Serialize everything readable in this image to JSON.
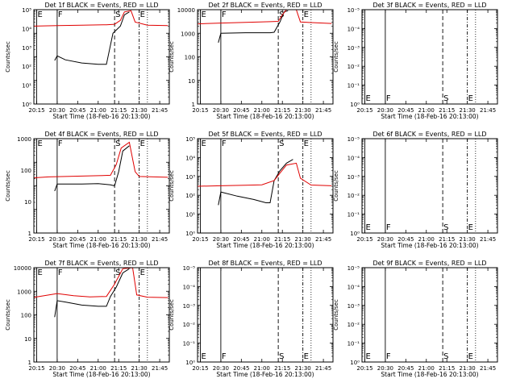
{
  "figure": {
    "xlabel": "Start Time (18-Feb-16 20:13:00)",
    "ylabel": "Counts/sec",
    "colors": {
      "events": "#000000",
      "lld": "#e00000",
      "axes": "#000000"
    }
  },
  "chart_data": [
    {
      "type": "line",
      "title": "Det 1f BLACK = Events, RED = LLD",
      "ylim": [
        1,
        10000
      ],
      "ylog": true,
      "xlim": [
        20.216,
        21.867
      ],
      "xticks": [
        "20:15",
        "20:30",
        "20:45",
        "21:00",
        "21:15",
        "21:30",
        "21:45"
      ],
      "yticks": [
        "10⁰",
        "10¹",
        "10²",
        "10³",
        "10⁴",
        "10⁵"
      ],
      "markers": [
        {
          "label": "E",
          "t": 20.25
        },
        {
          "label": "F",
          "t": 20.5
        },
        {
          "label": "S",
          "t": 21.2
        },
        {
          "label": "E",
          "t": 21.5
        }
      ],
      "series": [
        {
          "name": "Events",
          "color": "#000000",
          "points": [
            [
              20.47,
              70
            ],
            [
              20.5,
              110
            ],
            [
              20.6,
              75
            ],
            [
              20.8,
              55
            ],
            [
              21.0,
              48
            ],
            [
              21.1,
              48
            ],
            [
              21.18,
              1000
            ],
            [
              21.27,
              2000
            ],
            [
              21.32,
              6000
            ],
            [
              21.38,
              8000
            ]
          ]
        },
        {
          "name": "LLD",
          "color": "#e00000",
          "points": [
            [
              20.22,
              2000
            ],
            [
              20.5,
              2100
            ],
            [
              20.8,
              2200
            ],
            [
              21.1,
              2300
            ],
            [
              21.2,
              2400
            ],
            [
              21.27,
              3500
            ],
            [
              21.32,
              8000
            ],
            [
              21.4,
              9000
            ],
            [
              21.45,
              3000
            ],
            [
              21.6,
              2200
            ],
            [
              21.85,
              2100
            ]
          ]
        }
      ]
    },
    {
      "type": "line",
      "title": "Det 2f BLACK = Events, RED = LLD",
      "ylim": [
        1,
        10000
      ],
      "ylog": true,
      "xlim": [
        20.216,
        21.867
      ],
      "xticks": [
        "20:15",
        "20:30",
        "20:45",
        "21:00",
        "21:15",
        "21:30",
        "21:45"
      ],
      "yticks": [
        "1",
        "10",
        "100",
        "1000",
        "10000"
      ],
      "markers": [
        {
          "label": "E",
          "t": 20.25
        },
        {
          "label": "F",
          "t": 20.5
        },
        {
          "label": "S",
          "t": 21.2
        },
        {
          "label": "E",
          "t": 21.5
        }
      ],
      "series": [
        {
          "name": "Events",
          "color": "#000000",
          "points": [
            [
              20.47,
              400
            ],
            [
              20.5,
              1000
            ],
            [
              20.8,
              1050
            ],
            [
              21.1,
              1050
            ],
            [
              21.15,
              1100
            ],
            [
              21.22,
              3000
            ],
            [
              21.27,
              8000
            ],
            [
              21.32,
              9000
            ]
          ]
        },
        {
          "name": "LLD",
          "color": "#e00000",
          "points": [
            [
              20.22,
              2500
            ],
            [
              20.5,
              2700
            ],
            [
              20.8,
              2900
            ],
            [
              21.1,
              3100
            ],
            [
              21.2,
              3200
            ],
            [
              21.25,
              6000
            ],
            [
              21.3,
              10000
            ],
            [
              21.42,
              10000
            ],
            [
              21.47,
              3000
            ],
            [
              21.85,
              2600
            ]
          ]
        }
      ]
    },
    {
      "type": "line",
      "title": "Det 3f BLACK = Events, RED = LLD",
      "ylim": [
        1,
        100000
      ],
      "ylog": true,
      "xlim": [
        20.216,
        21.867
      ],
      "xticks": [
        "20:15",
        "20:30",
        "20:45",
        "21:00",
        "21:15",
        "21:30",
        "21:45"
      ],
      "yticks": [
        "10⁰",
        "10⁻¹",
        "10⁻²",
        "10⁻³",
        "10⁻⁴",
        "10⁻⁵"
      ],
      "markers": [
        {
          "label": "E",
          "t": 20.25
        },
        {
          "label": "F",
          "t": 20.5
        },
        {
          "label": "S",
          "t": 21.2
        },
        {
          "label": "E",
          "t": 21.5
        }
      ],
      "series": []
    },
    {
      "type": "line",
      "title": "Det 4f BLACK = Events, RED = LLD",
      "ylim": [
        1,
        10000
      ],
      "ylog": true,
      "xlim": [
        20.216,
        21.867
      ],
      "xticks": [
        "20:15",
        "20:30",
        "20:45",
        "21:00",
        "21:15",
        "21:30",
        "21:45"
      ],
      "yticks": [
        "1",
        "10",
        "100",
        "1000"
      ],
      "markers": [
        {
          "label": "E",
          "t": 20.25
        },
        {
          "label": "F",
          "t": 20.5
        },
        {
          "label": "S",
          "t": 21.2
        },
        {
          "label": "E",
          "t": 21.5
        }
      ],
      "series": [
        {
          "name": "Events",
          "color": "#000000",
          "points": [
            [
              20.47,
              60
            ],
            [
              20.5,
              120
            ],
            [
              20.8,
              120
            ],
            [
              21.0,
              125
            ],
            [
              21.15,
              110
            ],
            [
              21.2,
              100
            ],
            [
              21.25,
              400
            ],
            [
              21.3,
              3000
            ],
            [
              21.38,
              5000
            ]
          ]
        },
        {
          "name": "LLD",
          "color": "#e00000",
          "points": [
            [
              20.22,
              220
            ],
            [
              20.4,
              240
            ],
            [
              20.6,
              250
            ],
            [
              20.8,
              260
            ],
            [
              21.0,
              270
            ],
            [
              21.15,
              280
            ],
            [
              21.22,
              800
            ],
            [
              21.28,
              4000
            ],
            [
              21.38,
              7000
            ],
            [
              21.45,
              400
            ],
            [
              21.5,
              250
            ],
            [
              21.85,
              230
            ]
          ]
        }
      ]
    },
    {
      "type": "line",
      "title": "Det 5f BLACK = Events, RED = LLD",
      "ylim": [
        1,
        100000
      ],
      "ylog": true,
      "xlim": [
        20.216,
        21.867
      ],
      "xticks": [
        "20:15",
        "20:30",
        "20:45",
        "21:00",
        "21:15",
        "21:30",
        "21:45"
      ],
      "yticks": [
        "10⁰",
        "10¹",
        "10²",
        "10³",
        "10⁴",
        "10⁵"
      ],
      "markers": [
        {
          "label": "E",
          "t": 20.25
        },
        {
          "label": "F",
          "t": 20.5
        },
        {
          "label": "S",
          "t": 21.2
        },
        {
          "label": "E",
          "t": 21.5
        }
      ],
      "series": [
        {
          "name": "Events",
          "color": "#000000",
          "points": [
            [
              20.47,
              30
            ],
            [
              20.5,
              150
            ],
            [
              20.7,
              90
            ],
            [
              20.9,
              60
            ],
            [
              21.05,
              40
            ],
            [
              21.1,
              40
            ],
            [
              21.15,
              600
            ],
            [
              21.22,
              2000
            ],
            [
              21.3,
              5000
            ],
            [
              21.38,
              8000
            ]
          ]
        },
        {
          "name": "LLD",
          "color": "#e00000",
          "points": [
            [
              20.22,
              300
            ],
            [
              20.5,
              320
            ],
            [
              20.8,
              340
            ],
            [
              21.0,
              360
            ],
            [
              21.15,
              600
            ],
            [
              21.22,
              1500
            ],
            [
              21.3,
              4000
            ],
            [
              21.42,
              5000
            ],
            [
              21.47,
              800
            ],
            [
              21.6,
              350
            ],
            [
              21.85,
              320
            ]
          ]
        }
      ]
    },
    {
      "type": "line",
      "title": "Det 6f BLACK = Events, RED = LLD",
      "ylim": [
        1,
        100000
      ],
      "ylog": true,
      "xlim": [
        20.216,
        21.867
      ],
      "xticks": [
        "20:15",
        "20:30",
        "20:45",
        "21:00",
        "21:15",
        "21:30",
        "21:45"
      ],
      "yticks": [
        "10⁰",
        "10⁻¹",
        "10⁻²",
        "10⁻³",
        "10⁻⁴",
        "10⁻⁵"
      ],
      "markers": [
        {
          "label": "E",
          "t": 20.25
        },
        {
          "label": "F",
          "t": 20.5
        },
        {
          "label": "S",
          "t": 21.2
        },
        {
          "label": "E",
          "t": 21.5
        }
      ],
      "series": []
    },
    {
      "type": "line",
      "title": "Det 7f BLACK = Events, RED = LLD",
      "ylim": [
        1,
        10000
      ],
      "ylog": true,
      "xlim": [
        20.216,
        21.867
      ],
      "xticks": [
        "20:15",
        "20:30",
        "20:45",
        "21:00",
        "21:15",
        "21:30",
        "21:45"
      ],
      "yticks": [
        "1",
        "10",
        "100",
        "1000",
        "10000"
      ],
      "markers": [
        {
          "label": "E",
          "t": 20.25
        },
        {
          "label": "F",
          "t": 20.5
        },
        {
          "label": "S",
          "t": 21.2
        },
        {
          "label": "E",
          "t": 21.5
        }
      ],
      "series": [
        {
          "name": "Events",
          "color": "#000000",
          "points": [
            [
              20.47,
              80
            ],
            [
              20.5,
              400
            ],
            [
              20.6,
              350
            ],
            [
              20.8,
              260
            ],
            [
              21.0,
              230
            ],
            [
              21.1,
              230
            ],
            [
              21.15,
              600
            ],
            [
              21.22,
              1500
            ],
            [
              21.3,
              6000
            ],
            [
              21.38,
              9000
            ]
          ]
        },
        {
          "name": "LLD",
          "color": "#e00000",
          "points": [
            [
              20.22,
              550
            ],
            [
              20.5,
              800
            ],
            [
              20.7,
              650
            ],
            [
              20.9,
              580
            ],
            [
              21.1,
              600
            ],
            [
              21.2,
              2000
            ],
            [
              21.3,
              9000
            ],
            [
              21.42,
              10000
            ],
            [
              21.47,
              700
            ],
            [
              21.6,
              560
            ],
            [
              21.85,
              540
            ]
          ]
        }
      ]
    },
    {
      "type": "line",
      "title": "Det 8f BLACK = Events, RED = LLD",
      "ylim": [
        1,
        100000
      ],
      "ylog": true,
      "xlim": [
        20.216,
        21.867
      ],
      "xticks": [
        "20:15",
        "20:30",
        "20:45",
        "21:00",
        "21:15",
        "21:30",
        "21:45"
      ],
      "yticks": [
        "10⁰",
        "10⁻¹",
        "10⁻²",
        "10⁻³",
        "10⁻⁴",
        "10⁻⁵"
      ],
      "markers": [
        {
          "label": "E",
          "t": 20.25
        },
        {
          "label": "F",
          "t": 20.5
        },
        {
          "label": "S",
          "t": 21.2
        },
        {
          "label": "E",
          "t": 21.5
        }
      ],
      "series": []
    },
    {
      "type": "line",
      "title": "Det 9f BLACK = Events, RED = LLD",
      "ylim": [
        1,
        100000
      ],
      "ylog": true,
      "xlim": [
        20.216,
        21.867
      ],
      "xticks": [
        "20:15",
        "20:30",
        "20:45",
        "21:00",
        "21:15",
        "21:30",
        "21:45"
      ],
      "yticks": [
        "10⁰",
        "10⁻¹",
        "10⁻²",
        "10⁻³",
        "10⁻⁴",
        "10⁻⁵"
      ],
      "markers": [
        {
          "label": "E",
          "t": 20.25
        },
        {
          "label": "F",
          "t": 20.5
        },
        {
          "label": "S",
          "t": 21.2
        },
        {
          "label": "E",
          "t": 21.5
        }
      ],
      "series": []
    }
  ]
}
